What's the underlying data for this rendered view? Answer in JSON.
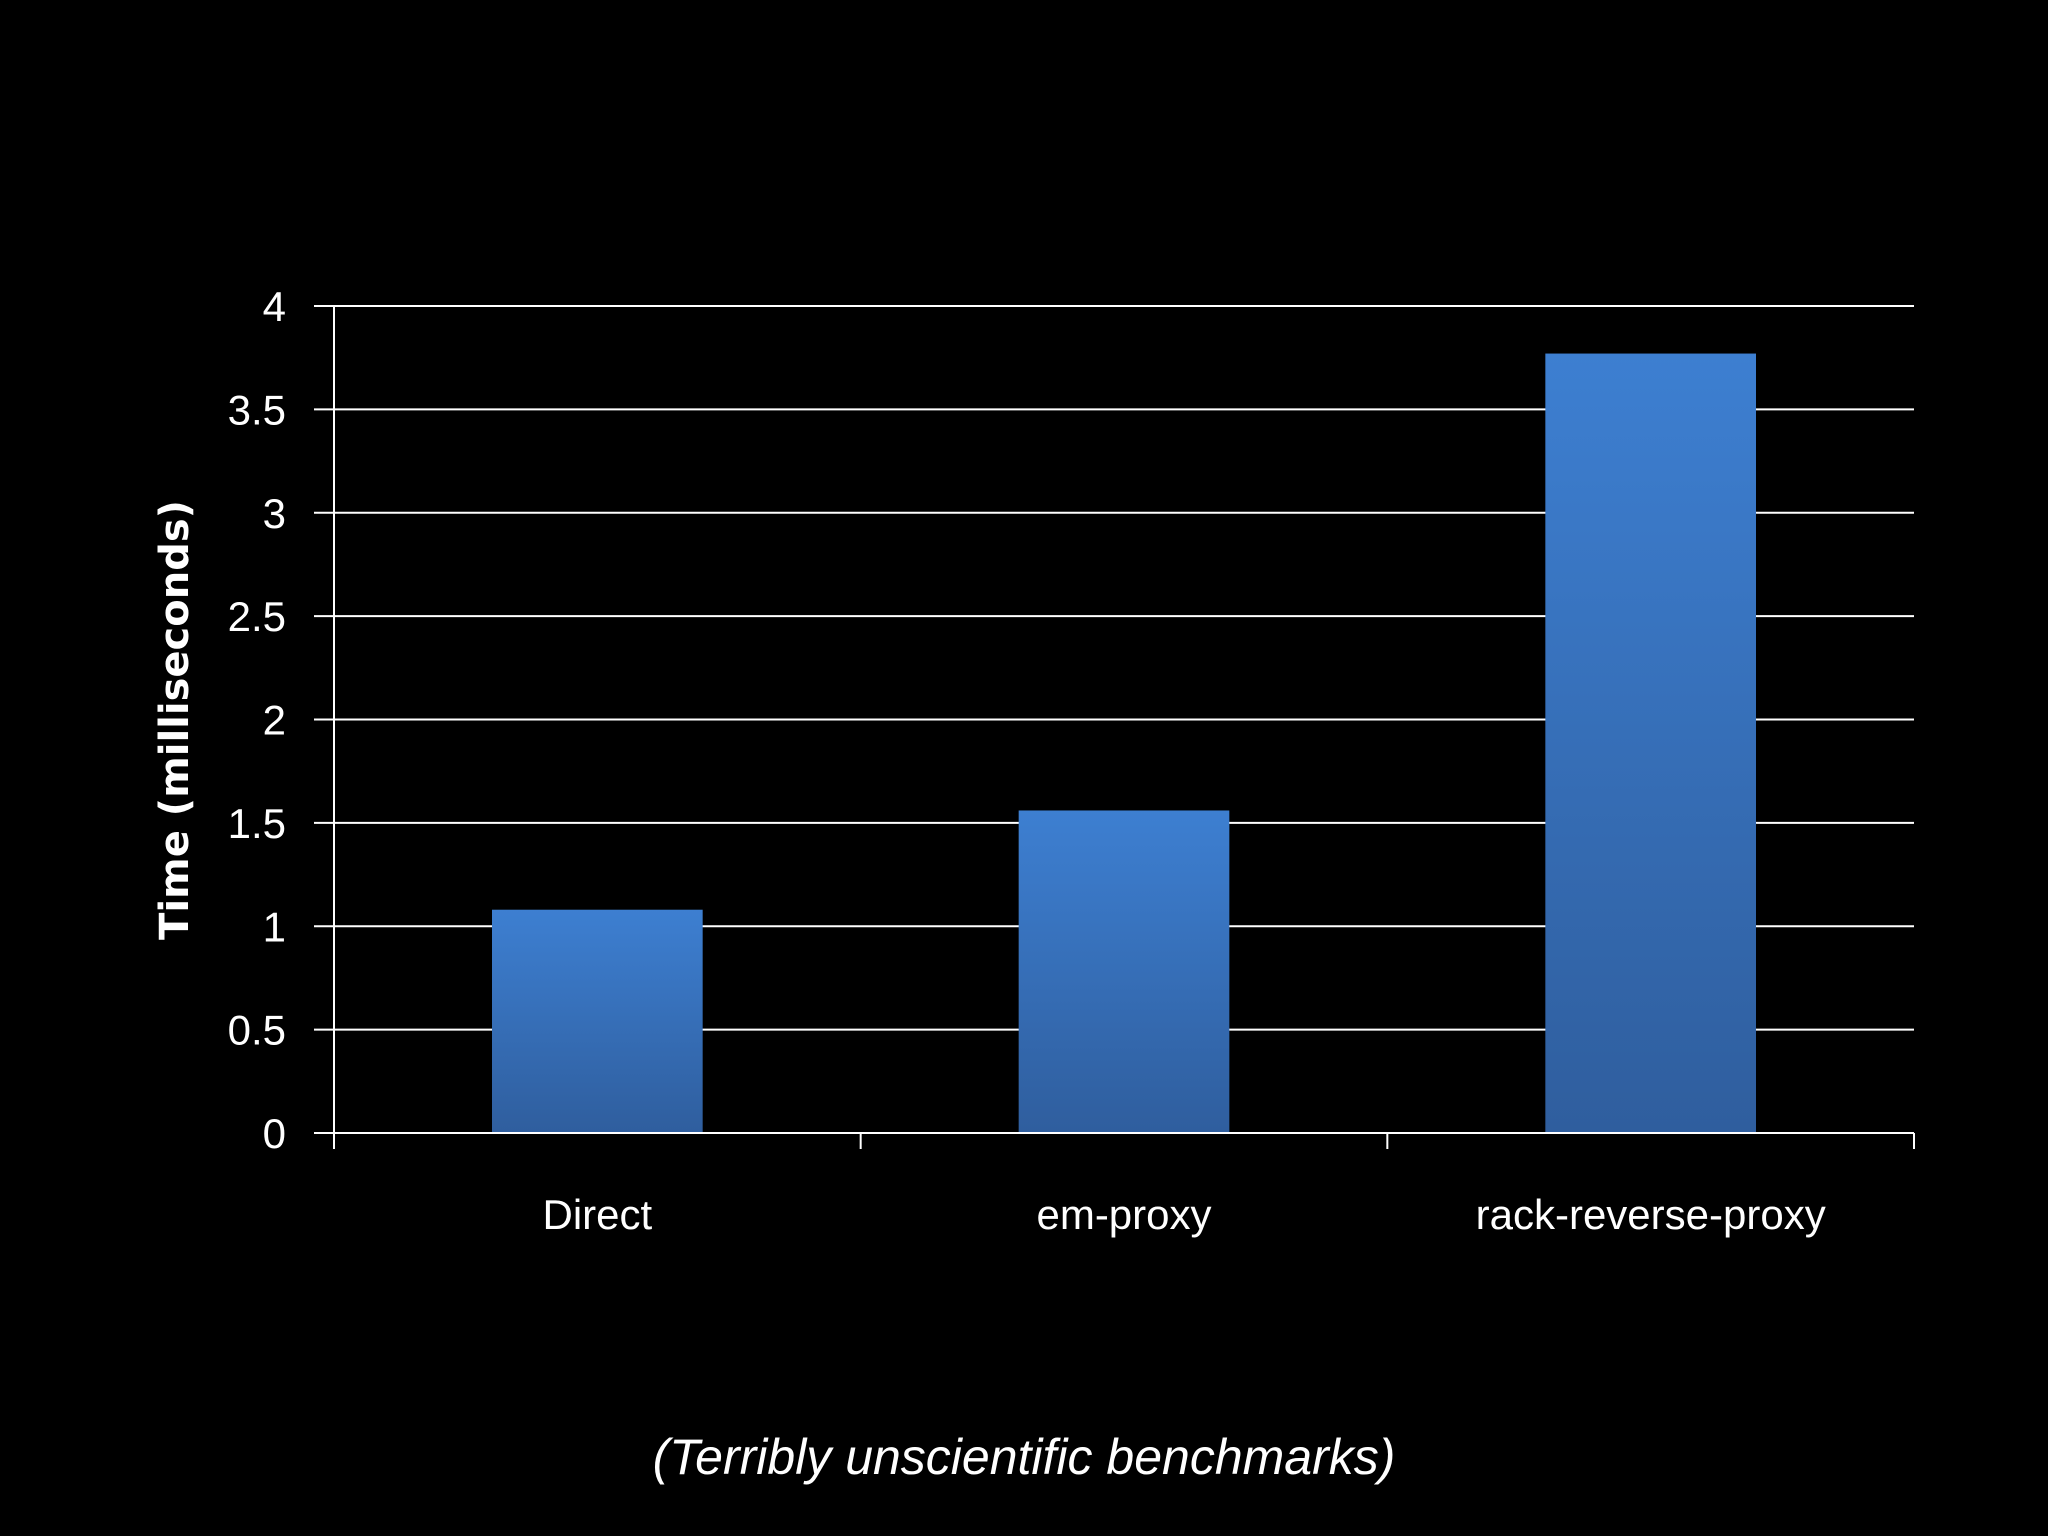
{
  "colors": {
    "background": "#000000",
    "bar_top": "#3d7fd1",
    "bar_bottom": "#2f5e9e",
    "grid": "#ffffff",
    "text": "#ffffff"
  },
  "caption": "(Terribly unscientific benchmarks)",
  "chart_data": {
    "type": "bar",
    "categories": [
      "Direct",
      "em-proxy",
      "rack-reverse-proxy"
    ],
    "values": [
      1.08,
      1.56,
      3.77
    ],
    "title": "",
    "xlabel": "",
    "ylabel": "Time (milliseconds)",
    "ylim": [
      0,
      4
    ],
    "yticks": [
      "0",
      "0.5",
      "1",
      "1.5",
      "2",
      "2.5",
      "3",
      "3.5",
      "4"
    ],
    "grid": true,
    "legend": "none"
  }
}
